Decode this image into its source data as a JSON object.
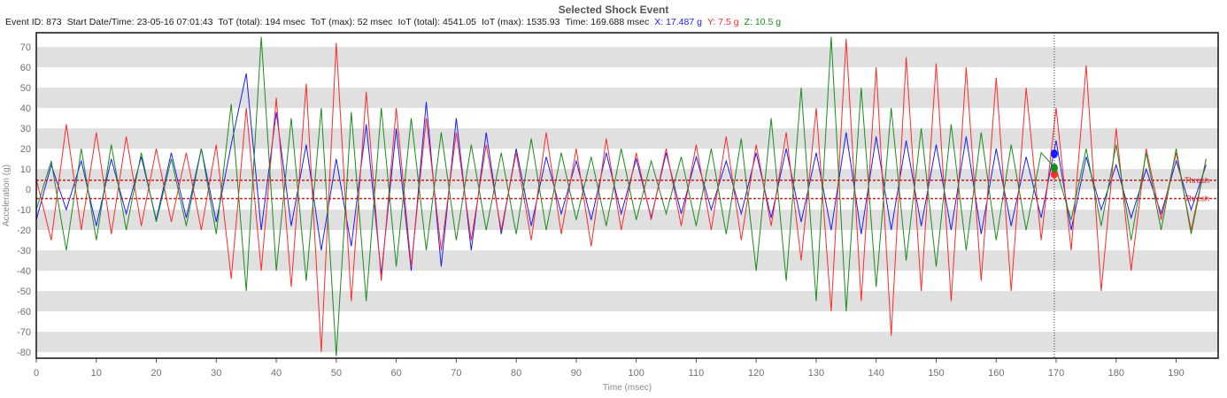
{
  "chart_data": {
    "type": "line",
    "title": "Selected Shock Event",
    "info": {
      "event_id": "Event ID: 873",
      "start": "Start Date/Time: 23-05-16 07:01:43",
      "tot_total": "ToT (total): 194 msec",
      "tot_max": "ToT (max): 52 msec",
      "iot_total": "IoT (total): 4541.05",
      "iot_max": "IoT (max): 1535.93",
      "time": "Time: 169.688 msec",
      "x_val": "X: 17.487 g",
      "y_val": "Y: 7.5 g",
      "z_val": "Z: 10.5 g"
    },
    "xlabel": "Time (msec)",
    "ylabel": "Acceleration (g)",
    "xlim": [
      0,
      197
    ],
    "ylim": [
      -83,
      77
    ],
    "xticks": [
      0,
      10,
      20,
      30,
      40,
      50,
      60,
      70,
      80,
      90,
      100,
      110,
      120,
      130,
      140,
      150,
      160,
      170,
      180,
      190
    ],
    "yticks": [
      70,
      60,
      50,
      40,
      30,
      20,
      10,
      0,
      -10,
      -20,
      -30,
      -40,
      -50,
      -60,
      -70,
      -80
    ],
    "grid": "horizontal alternating bands",
    "cursor": {
      "x": 169.688,
      "values": {
        "X": 17.487,
        "Y": 7.5,
        "Z": 10.5
      }
    },
    "thresholds": [
      {
        "value": 4.5,
        "label": "Thresh"
      },
      {
        "value": -4.5,
        "label": "Thresh"
      }
    ],
    "series": [
      {
        "name": "X",
        "color": "#1a1aff",
        "x": [
          0,
          2.5,
          5,
          7.5,
          10,
          12.5,
          15,
          17.5,
          20,
          22.5,
          25,
          27.5,
          30,
          32.5,
          35,
          37.5,
          40,
          42.5,
          45,
          47.5,
          50,
          52.5,
          55,
          57.5,
          60,
          62.5,
          65,
          67.5,
          70,
          72.5,
          75,
          77.5,
          80,
          82.5,
          85,
          87.5,
          90,
          92.5,
          95,
          97.5,
          100,
          102.5,
          105,
          107.5,
          110,
          112.5,
          115,
          117.5,
          120,
          122.5,
          125,
          127.5,
          130,
          132.5,
          135,
          137.5,
          140,
          142.5,
          145,
          147.5,
          150,
          152.5,
          155,
          157.5,
          160,
          162.5,
          165,
          167.5,
          170,
          172.5,
          175,
          177.5,
          180,
          182.5,
          185,
          187.5,
          190,
          192.5,
          195
        ],
        "y": [
          -15,
          12,
          -10,
          14,
          -18,
          15,
          -12,
          16,
          -15,
          18,
          -14,
          20,
          -16,
          22,
          57,
          -20,
          38,
          -18,
          22,
          -30,
          15,
          -28,
          32,
          -42,
          30,
          -40,
          43,
          -38,
          35,
          -30,
          28,
          -22,
          20,
          -18,
          16,
          -12,
          14,
          -15,
          18,
          -12,
          15,
          -14,
          18,
          -12,
          16,
          -10,
          14,
          -12,
          18,
          -14,
          20,
          -16,
          18,
          -20,
          28,
          -22,
          26,
          -20,
          24,
          -18,
          22,
          -20,
          26,
          -22,
          20,
          -18,
          16,
          -14,
          24,
          -20,
          16,
          -10,
          12,
          -14,
          10,
          -12,
          14,
          -10,
          12
        ]
      },
      {
        "name": "Y",
        "color": "#ff2a2a",
        "x": [
          0,
          2.5,
          5,
          7.5,
          10,
          12.5,
          15,
          17.5,
          20,
          22.5,
          25,
          27.5,
          30,
          32.5,
          35,
          37.5,
          40,
          42.5,
          45,
          47.5,
          50,
          52.5,
          55,
          57.5,
          60,
          62.5,
          65,
          67.5,
          70,
          72.5,
          75,
          77.5,
          80,
          82.5,
          85,
          87.5,
          90,
          92.5,
          95,
          97.5,
          100,
          102.5,
          105,
          107.5,
          110,
          112.5,
          115,
          117.5,
          120,
          122.5,
          125,
          127.5,
          130,
          132.5,
          135,
          137.5,
          140,
          142.5,
          145,
          147.5,
          150,
          152.5,
          155,
          157.5,
          160,
          162.5,
          165,
          167.5,
          170,
          172.5,
          175,
          177.5,
          180,
          182.5,
          185,
          187.5,
          190,
          192.5,
          195
        ],
        "y": [
          5,
          -25,
          32,
          -20,
          28,
          -22,
          26,
          -18,
          20,
          -16,
          18,
          -20,
          22,
          -44,
          40,
          -40,
          45,
          -48,
          52,
          -80,
          72,
          -55,
          48,
          -45,
          40,
          -38,
          35,
          -30,
          28,
          -25,
          22,
          -20,
          18,
          -25,
          28,
          -22,
          20,
          -28,
          25,
          -20,
          18,
          -15,
          20,
          -18,
          22,
          -20,
          26,
          -25,
          22,
          -18,
          28,
          -35,
          40,
          -60,
          74,
          -55,
          60,
          -72,
          65,
          -50,
          62,
          -55,
          60,
          -45,
          55,
          -50,
          50,
          -25,
          40,
          -30,
          61,
          -50,
          30,
          -40,
          20,
          -15,
          18,
          -20,
          15
        ]
      },
      {
        "name": "Z",
        "color": "#1a8c1a",
        "x": [
          0,
          2.5,
          5,
          7.5,
          10,
          12.5,
          15,
          17.5,
          20,
          22.5,
          25,
          27.5,
          30,
          32.5,
          35,
          37.5,
          40,
          42.5,
          45,
          47.5,
          50,
          52.5,
          55,
          57.5,
          60,
          62.5,
          65,
          67.5,
          70,
          72.5,
          75,
          77.5,
          80,
          82.5,
          85,
          87.5,
          90,
          92.5,
          95,
          97.5,
          100,
          102.5,
          105,
          107.5,
          110,
          112.5,
          115,
          117.5,
          120,
          122.5,
          125,
          127.5,
          130,
          132.5,
          135,
          137.5,
          140,
          142.5,
          145,
          147.5,
          150,
          152.5,
          155,
          157.5,
          160,
          162.5,
          165,
          167.5,
          170,
          172.5,
          175,
          177.5,
          180,
          182.5,
          185,
          187.5,
          190,
          192.5,
          195
        ],
        "y": [
          -10,
          14,
          -30,
          20,
          -25,
          22,
          -20,
          18,
          -16,
          15,
          -18,
          20,
          -22,
          42,
          -50,
          75,
          -40,
          35,
          -45,
          40,
          -82,
          38,
          -55,
          40,
          -38,
          35,
          -30,
          28,
          -25,
          22,
          -20,
          18,
          -22,
          25,
          -20,
          18,
          -15,
          16,
          -18,
          20,
          -15,
          14,
          -12,
          16,
          -18,
          20,
          -22,
          25,
          -40,
          35,
          -45,
          50,
          -55,
          75,
          -60,
          50,
          -48,
          40,
          -35,
          30,
          -38,
          32,
          -30,
          28,
          -25,
          22,
          -20,
          18,
          10,
          -15,
          20,
          -18,
          22,
          -25,
          18,
          -20,
          20,
          -22,
          15
        ]
      }
    ]
  }
}
